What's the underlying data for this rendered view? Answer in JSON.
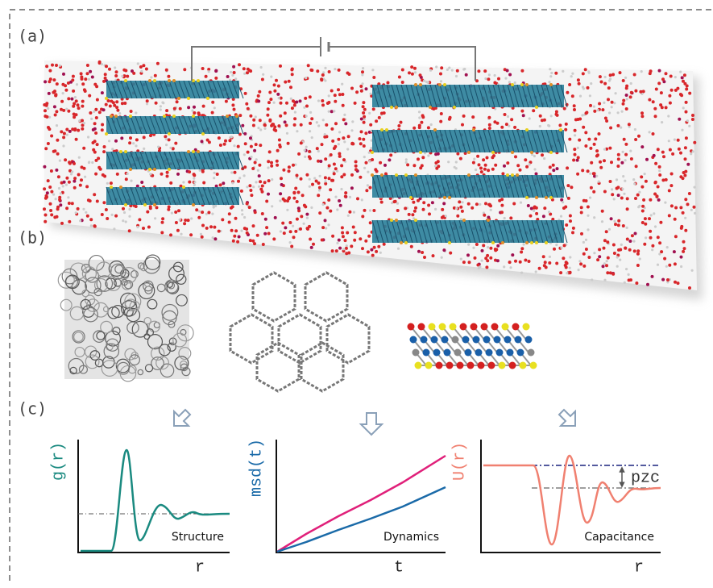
{
  "panels": {
    "a": "(a)",
    "b": "(b)",
    "c": "(c)"
  },
  "plots": [
    {
      "ylabel": "g(r)",
      "xlabel": "r",
      "caption": "Structure"
    },
    {
      "ylabel": "msd(t)",
      "xlabel": "t",
      "caption": "Dynamics"
    },
    {
      "ylabel": "U(r)",
      "xlabel": "r",
      "caption": "Capacitance",
      "annotation": "pzc"
    }
  ]
}
